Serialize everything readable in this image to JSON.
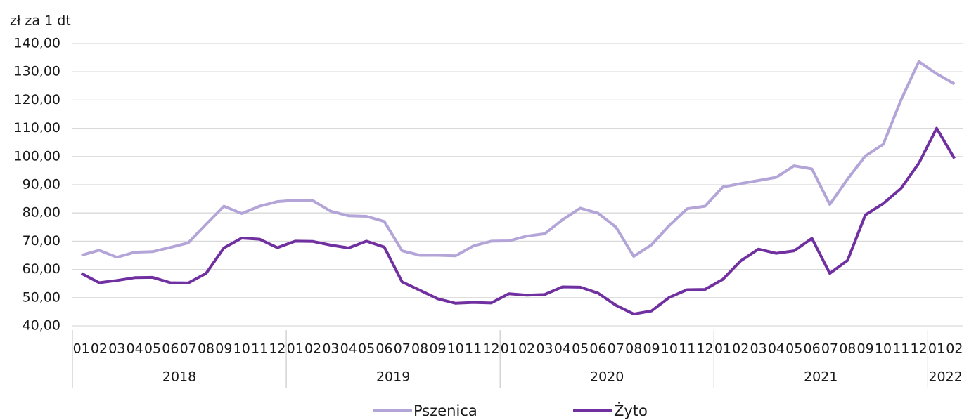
{
  "chart_data": {
    "type": "line",
    "y_axis_label": "zł za 1 dt",
    "groups": [
      {
        "label": "2018",
        "categories": [
          "01",
          "02",
          "03",
          "04",
          "05",
          "06",
          "07",
          "08",
          "09",
          "10",
          "11",
          "12"
        ]
      },
      {
        "label": "2019",
        "categories": [
          "01",
          "02",
          "03",
          "04",
          "05",
          "06",
          "07",
          "08",
          "09",
          "10",
          "11",
          "12"
        ]
      },
      {
        "label": "2020",
        "categories": [
          "01",
          "02",
          "03",
          "04",
          "05",
          "06",
          "07",
          "08",
          "09",
          "10",
          "11",
          "12"
        ]
      },
      {
        "label": "2021",
        "categories": [
          "01",
          "02",
          "03",
          "04",
          "05",
          "06",
          "07",
          "08",
          "09",
          "10",
          "11",
          "12"
        ]
      },
      {
        "label": "2022",
        "categories": [
          "01",
          "02"
        ]
      }
    ],
    "series": [
      {
        "name": "Pszenica",
        "color": "#b4a5d8",
        "values": [
          65,
          66.8,
          64.3,
          66.1,
          66.3,
          67.8,
          69.4,
          76,
          82.4,
          79.8,
          82.4,
          84,
          84.5,
          84.3,
          80.6,
          79,
          78.8,
          77,
          66.6,
          65,
          65,
          64.8,
          68.3,
          70,
          70.1,
          71.8,
          72.6,
          77.6,
          81.7,
          79.9,
          75,
          64.6,
          68.7,
          75.6,
          81.5,
          82.4,
          89.2,
          90.4,
          91.5,
          92.6,
          96.7,
          95.6,
          83,
          92,
          100.2,
          104.3,
          120,
          133.6,
          129.3,
          125.7
        ]
      },
      {
        "name": "Żyto",
        "color": "#7030a0",
        "values": [
          58.6,
          55.3,
          56.1,
          57.1,
          57.2,
          55.3,
          55.2,
          58.6,
          67.6,
          71.1,
          70.7,
          67.7,
          70,
          69.9,
          68.6,
          67.6,
          70,
          67.9,
          55.6,
          52.6,
          49.6,
          48,
          48.3,
          48.1,
          51.4,
          50.9,
          51.1,
          53.8,
          53.7,
          51.6,
          47.3,
          44.2,
          45.3,
          50.1,
          52.8,
          52.9,
          56.5,
          63,
          67.2,
          65.7,
          66.6,
          71,
          58.6,
          63.2,
          79.3,
          83.3,
          88.7,
          97.6,
          110,
          99.3
        ]
      }
    ],
    "ylim": [
      40,
      140
    ],
    "yticks": [
      {
        "value": 40,
        "label": "40,00"
      },
      {
        "value": 50,
        "label": "50,00"
      },
      {
        "value": 60,
        "label": "60,00"
      },
      {
        "value": 70,
        "label": "70,00"
      },
      {
        "value": 80,
        "label": "80,00"
      },
      {
        "value": 90,
        "label": "90,00"
      },
      {
        "value": 100,
        "label": "100,00"
      },
      {
        "value": 110,
        "label": "110,00"
      },
      {
        "value": 120,
        "label": "120,00"
      },
      {
        "value": 130,
        "label": "130,00"
      },
      {
        "value": 140,
        "label": "140,00"
      }
    ],
    "grid": true,
    "legend": "bottom"
  }
}
